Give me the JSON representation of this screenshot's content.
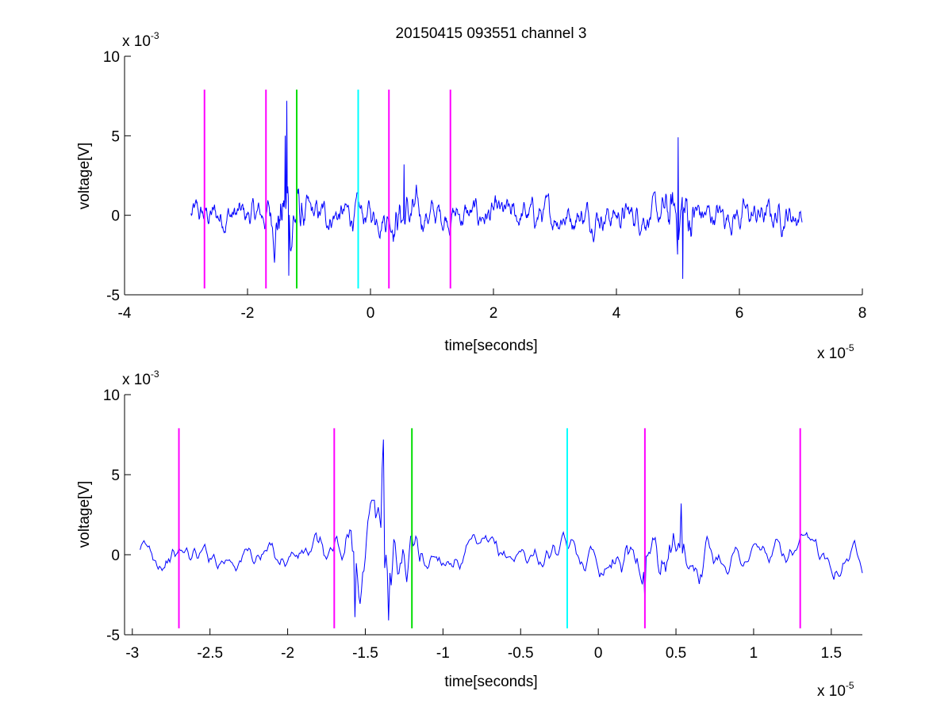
{
  "figure": {
    "title": "20150415 093551 channel 3"
  },
  "chart_data": [
    {
      "type": "line",
      "title": "20150415 093551 channel 3",
      "xlabel": "time[seconds]",
      "ylabel": "voltage[V]",
      "x_multiplier": "x 10",
      "x_exponent": "-5",
      "y_multiplier": "x 10",
      "y_exponent": "-3",
      "xlim": [
        -4,
        8
      ],
      "ylim": [
        -5,
        10
      ],
      "xticks": [
        -4,
        -2,
        0,
        2,
        4,
        6,
        8
      ],
      "xtick_labels": [
        "-4",
        "-2",
        "0",
        "2",
        "4",
        "6",
        "8"
      ],
      "yticks": [
        -5,
        0,
        5,
        10
      ],
      "ytick_labels": [
        "-5",
        "0",
        "5",
        "10"
      ],
      "grid": false,
      "trace": {
        "name": "",
        "color": "#0000ff",
        "x_start": -2.92,
        "x_end": 7.02
      },
      "markers": [
        {
          "x": -2.7,
          "color": "#ff00ff",
          "ymin": -4.6,
          "ymax": 7.9
        },
        {
          "x": -1.7,
          "color": "#ff00ff",
          "ymin": -4.6,
          "ymax": 7.9
        },
        {
          "x": -1.2,
          "color": "#00dd00",
          "ymin": -4.6,
          "ymax": 7.9
        },
        {
          "x": -0.2,
          "color": "#00ffff",
          "ymin": -4.6,
          "ymax": 7.9
        },
        {
          "x": 0.3,
          "color": "#ff00ff",
          "ymin": -4.6,
          "ymax": 7.9
        },
        {
          "x": 1.3,
          "color": "#ff00ff",
          "ymin": -4.6,
          "ymax": 7.9
        }
      ],
      "features": [
        {
          "x": -1.36,
          "y": 7.2
        },
        {
          "x": -1.33,
          "y": -3.8
        },
        {
          "x": -1.39,
          "y": 5.0
        },
        {
          "x": 5.0,
          "y": 4.9
        },
        {
          "x": 5.08,
          "y": -4.0
        },
        {
          "x": 0.55,
          "y": 3.2
        }
      ]
    },
    {
      "type": "line",
      "xlabel": "time[seconds]",
      "ylabel": "voltage[V]",
      "x_multiplier": "x 10",
      "x_exponent": "-5",
      "y_multiplier": "x 10",
      "y_exponent": "-3",
      "xlim": [
        -3.05,
        1.7
      ],
      "ylim": [
        -5,
        10
      ],
      "xticks": [
        -3,
        -2.5,
        -2,
        -1.5,
        -1,
        -0.5,
        0,
        0.5,
        1,
        1.5
      ],
      "xtick_labels": [
        "-3",
        "-2.5",
        "-2",
        "-1.5",
        "-1",
        "-0.5",
        "0",
        "0.5",
        "1",
        "1.5"
      ],
      "yticks": [
        -5,
        0,
        5,
        10
      ],
      "ytick_labels": [
        "-5",
        "0",
        "5",
        "10"
      ],
      "grid": false,
      "trace": {
        "name": "",
        "color": "#0000ff",
        "x_start": -2.95,
        "x_end": 1.7
      },
      "markers": [
        {
          "x": -2.7,
          "color": "#ff00ff",
          "ymin": -4.6,
          "ymax": 7.9
        },
        {
          "x": -1.7,
          "color": "#ff00ff",
          "ymin": -4.6,
          "ymax": 7.9
        },
        {
          "x": -1.2,
          "color": "#00dd00",
          "ymin": -4.6,
          "ymax": 7.9
        },
        {
          "x": -0.2,
          "color": "#00ffff",
          "ymin": -4.6,
          "ymax": 7.9
        },
        {
          "x": 0.3,
          "color": "#ff00ff",
          "ymin": -4.6,
          "ymax": 7.9
        },
        {
          "x": 1.3,
          "color": "#ff00ff",
          "ymin": -4.6,
          "ymax": 7.9
        }
      ],
      "features": [
        {
          "x": -1.38,
          "y": 7.2
        },
        {
          "x": -1.35,
          "y": -4.1
        },
        {
          "x": -1.39,
          "y": 5.4
        },
        {
          "x": -1.57,
          "y": -3.9
        },
        {
          "x": 0.53,
          "y": 3.2
        },
        {
          "x": 0.3,
          "y": -2.9
        }
      ]
    }
  ]
}
